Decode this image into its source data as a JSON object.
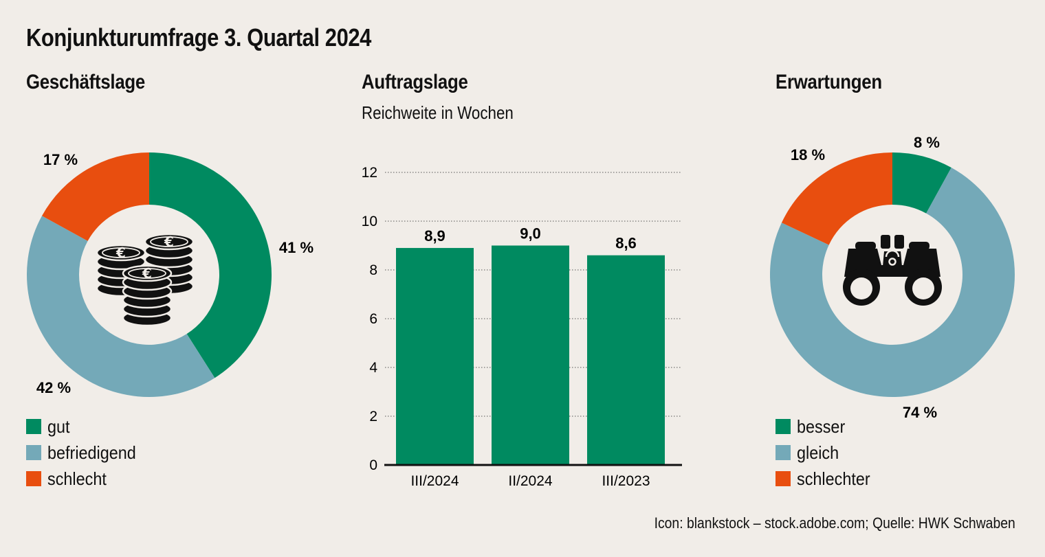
{
  "title": "Konjunkturumfrage 3. Quartal 2024",
  "source": "Icon: blankstock – stock.adobe.com; Quelle: HWK Schwaben",
  "colors": {
    "green": "#008a60",
    "blue": "#74a9b8",
    "red": "#e84e0f",
    "background": "#f1ede8"
  },
  "icons": {
    "left": "euro-coins-icon",
    "right": "binoculars-icon"
  },
  "chart_data": [
    {
      "type": "pie",
      "title": "Geschäftslage",
      "style": "donut",
      "slices": [
        {
          "label": "gut",
          "value": 41,
          "display": "41 %",
          "color": "#008a60"
        },
        {
          "label": "befriedigend",
          "value": 42,
          "display": "42 %",
          "color": "#74a9b8"
        },
        {
          "label": "schlecht",
          "value": 17,
          "display": "17 %",
          "color": "#e84e0f"
        }
      ],
      "legend": [
        "gut",
        "befriedigend",
        "schlecht"
      ],
      "legend_placement": "bottom-left"
    },
    {
      "type": "bar",
      "title": "Auftragslage",
      "subtitle": "Reichweite in Wochen",
      "categories": [
        "III/2024",
        "II/2024",
        "III/2023"
      ],
      "values": [
        8.9,
        9.0,
        8.6
      ],
      "value_labels": [
        "8,9",
        "9,0",
        "8,6"
      ],
      "yticks": [
        "0",
        "2",
        "4",
        "6",
        "8",
        "10",
        "12"
      ],
      "ylim": [
        0,
        13
      ],
      "grid": "dotted horizontal",
      "color": "#008a60"
    },
    {
      "type": "pie",
      "title": "Erwartungen",
      "style": "donut",
      "slices": [
        {
          "label": "besser",
          "value": 8,
          "display": "8 %",
          "color": "#008a60"
        },
        {
          "label": "gleich",
          "value": 74,
          "display": "74 %",
          "color": "#74a9b8"
        },
        {
          "label": "schlechter",
          "value": 18,
          "display": "18 %",
          "color": "#e84e0f"
        }
      ],
      "legend": [
        "besser",
        "gleich",
        "schlechter"
      ],
      "legend_placement": "bottom-left"
    }
  ]
}
